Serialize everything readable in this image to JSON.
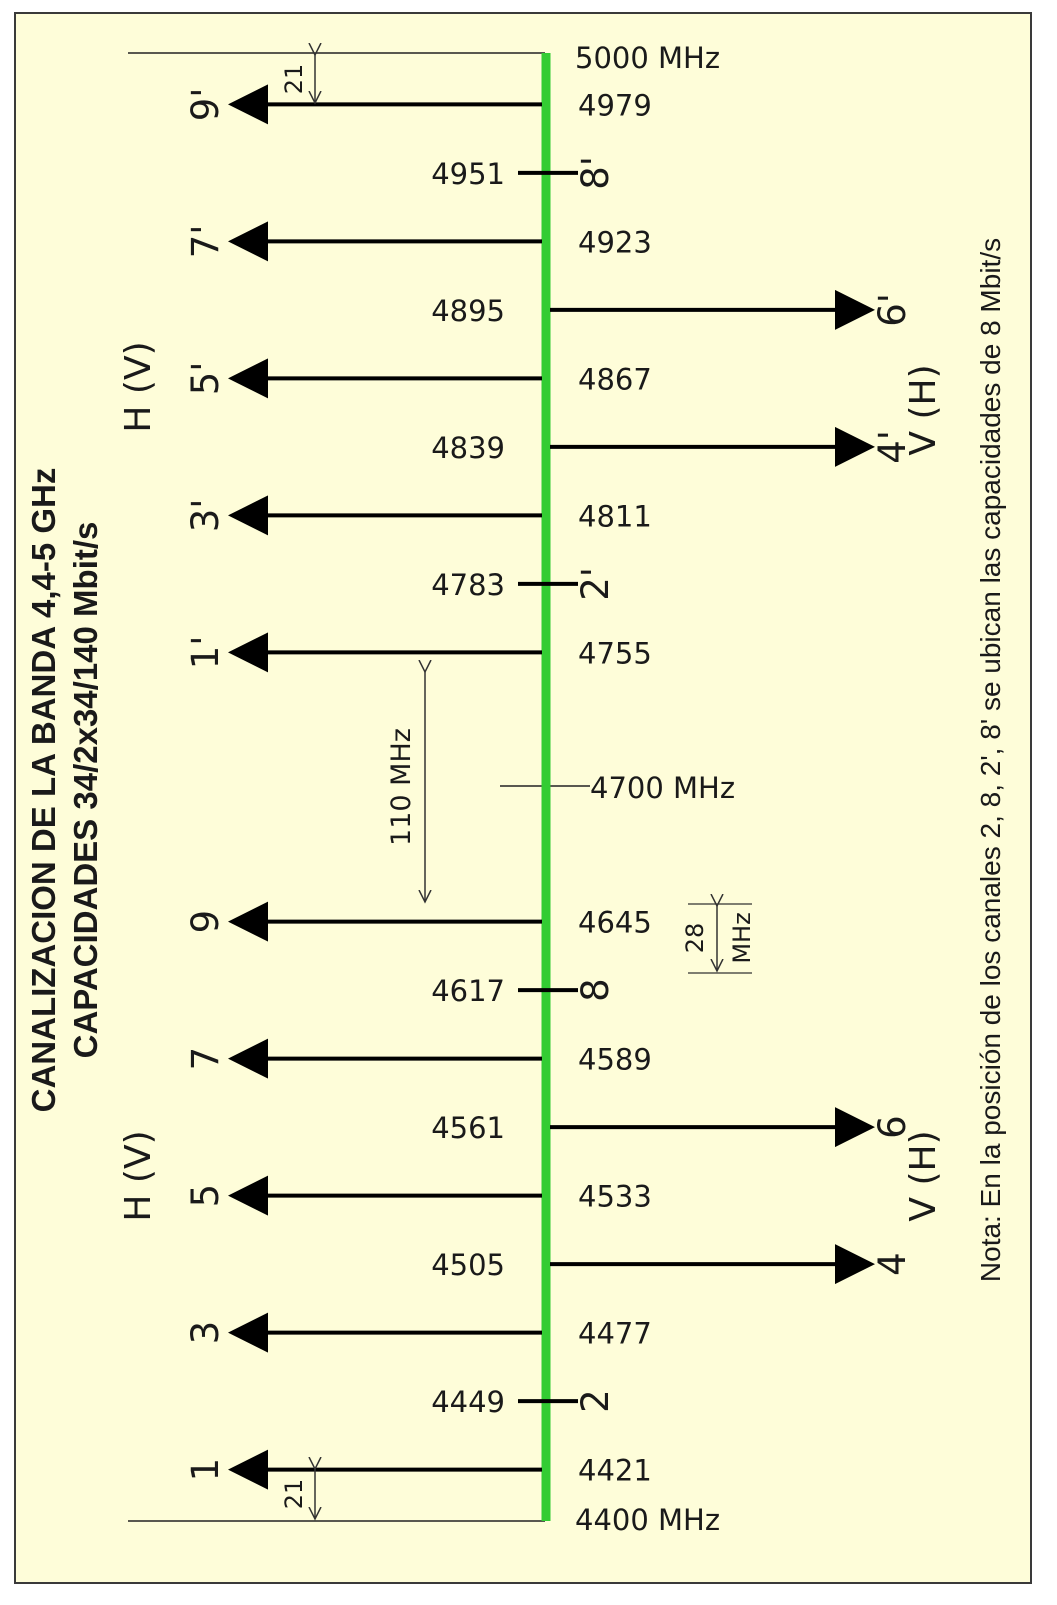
{
  "title": {
    "line1": "CANALIZACION DE LA BANDA 4,4-5 GHz",
    "line2": "CAPACIDADES 34/2x34/140 Mbit/s"
  },
  "note": "Nota: En la posición de los canales 2, 8, 2', 8' se ubican las capacidades de 8 Mbit/s",
  "band": {
    "low_label": "4400  MHz",
    "high_label": "5000  MHz",
    "center_label": "4700  MHz",
    "low_mhz": 4400,
    "high_mhz": 5000,
    "center_mhz": 4700,
    "axis_color": "#33cc33"
  },
  "dimensions": {
    "edge_gap_top": "21",
    "edge_gap_bottom": "21",
    "center_gap": "110  MHz",
    "channel_spacing_line1": "28",
    "channel_spacing_line2": "MHz"
  },
  "polarizations": {
    "left_lower": "H (V)",
    "left_upper": "H (V)",
    "right_lower": "V (H)",
    "right_upper": "V (H)"
  },
  "channels": [
    {
      "name": "1",
      "freq": "4421",
      "freq_mhz": 4421,
      "side": "left"
    },
    {
      "name": "2",
      "freq": "4449",
      "freq_mhz": 4449,
      "side": "stub"
    },
    {
      "name": "3",
      "freq": "4477",
      "freq_mhz": 4477,
      "side": "left"
    },
    {
      "name": "4",
      "freq": "4505",
      "freq_mhz": 4505,
      "side": "right"
    },
    {
      "name": "5",
      "freq": "4533",
      "freq_mhz": 4533,
      "side": "left"
    },
    {
      "name": "6",
      "freq": "4561",
      "freq_mhz": 4561,
      "side": "right"
    },
    {
      "name": "7",
      "freq": "4589",
      "freq_mhz": 4589,
      "side": "left"
    },
    {
      "name": "8",
      "freq": "4617",
      "freq_mhz": 4617,
      "side": "stub"
    },
    {
      "name": "9",
      "freq": "4645",
      "freq_mhz": 4645,
      "side": "left"
    },
    {
      "name": "1'",
      "freq": "4755",
      "freq_mhz": 4755,
      "side": "left"
    },
    {
      "name": "2'",
      "freq": "4783",
      "freq_mhz": 4783,
      "side": "stub"
    },
    {
      "name": "3'",
      "freq": "4811",
      "freq_mhz": 4811,
      "side": "left"
    },
    {
      "name": "4'",
      "freq": "4839",
      "freq_mhz": 4839,
      "side": "right"
    },
    {
      "name": "5'",
      "freq": "4867",
      "freq_mhz": 4867,
      "side": "left"
    },
    {
      "name": "6'",
      "freq": "4895",
      "freq_mhz": 4895,
      "side": "right"
    },
    {
      "name": "7'",
      "freq": "4923",
      "freq_mhz": 4923,
      "side": "left"
    },
    {
      "name": "8'",
      "freq": "4951",
      "freq_mhz": 4951,
      "side": "stub"
    },
    {
      "name": "9'",
      "freq": "4979",
      "freq_mhz": 4979,
      "side": "left"
    }
  ]
}
